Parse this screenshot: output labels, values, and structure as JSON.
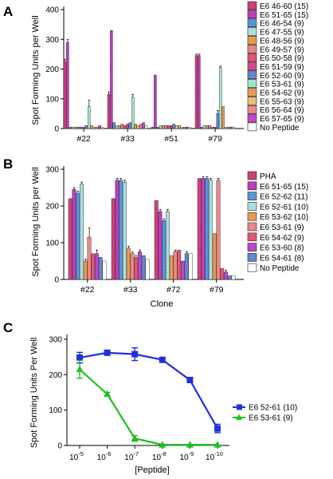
{
  "figure": {
    "panel_labels": [
      "A",
      "B",
      "C"
    ]
  },
  "chart_data": [
    {
      "panel": "A",
      "type": "bar",
      "ylabel": "Spot Forming Units per Well",
      "xlabel": "",
      "ylim": [
        0,
        400
      ],
      "yticks": [
        0,
        100,
        200,
        300,
        400
      ],
      "categories": [
        "#22",
        "#33",
        "#51",
        "#79"
      ],
      "series": [
        {
          "name": "E6 46-60 (15)",
          "color": "#d6457a",
          "values": [
            225,
            115,
            5,
            245
          ],
          "errors": [
            8,
            8,
            0,
            5
          ]
        },
        {
          "name": "E6 51-65 (15)",
          "color": "#c23fc2",
          "values": [
            290,
            330,
            180,
            245
          ],
          "errors": [
            10,
            0,
            0,
            5
          ]
        },
        {
          "name": "E6 46-54 (9)",
          "color": "#5a9ce0",
          "values": [
            5,
            20,
            5,
            5
          ],
          "errors": [
            0,
            0,
            0,
            0
          ]
        },
        {
          "name": "E6 47-55 (9)",
          "color": "#b4e6e6",
          "values": [
            5,
            10,
            10,
            10
          ],
          "errors": [
            0,
            0,
            0,
            0
          ]
        },
        {
          "name": "E6 48-56 (9)",
          "color": "#f0a050",
          "values": [
            5,
            10,
            10,
            10
          ],
          "errors": [
            0,
            0,
            0,
            0
          ]
        },
        {
          "name": "E6 49-57 (9)",
          "color": "#f08c8c",
          "values": [
            5,
            15,
            10,
            10
          ],
          "errors": [
            0,
            0,
            0,
            0
          ]
        },
        {
          "name": "E6 50-58 (9)",
          "color": "#e85a78",
          "values": [
            5,
            10,
            10,
            5
          ],
          "errors": [
            0,
            0,
            0,
            0
          ]
        },
        {
          "name": "E6 51-59 (9)",
          "color": "#e04a94",
          "values": [
            5,
            15,
            10,
            5
          ],
          "errors": [
            0,
            0,
            0,
            0
          ]
        },
        {
          "name": "E6 52-60 (9)",
          "color": "#6a8ad8",
          "values": [
            10,
            20,
            15,
            50
          ],
          "errors": [
            0,
            0,
            0,
            10
          ]
        },
        {
          "name": "E6 53-61 (9)",
          "color": "#a8ecd0",
          "values": [
            75,
            105,
            10,
            205
          ],
          "errors": [
            20,
            10,
            0,
            5
          ]
        },
        {
          "name": "E6 54-62 (9)",
          "color": "#f0a060",
          "values": [
            10,
            15,
            10,
            75
          ],
          "errors": [
            0,
            0,
            0,
            0
          ]
        },
        {
          "name": "E6 55-63 (9)",
          "color": "#f0c878",
          "values": [
            5,
            10,
            5,
            5
          ],
          "errors": [
            0,
            0,
            0,
            0
          ]
        },
        {
          "name": "E6 56-64 (9)",
          "color": "#f09090",
          "values": [
            5,
            15,
            5,
            5
          ],
          "errors": [
            0,
            0,
            0,
            0
          ]
        },
        {
          "name": "E6 57-65  (9)",
          "color": "#d04ad0",
          "values": [
            10,
            20,
            5,
            5
          ],
          "errors": [
            0,
            0,
            0,
            0
          ]
        },
        {
          "name": "No Peptide",
          "color": "#ffffff",
          "values": [
            5,
            10,
            5,
            5
          ],
          "errors": [
            0,
            0,
            0,
            0
          ]
        }
      ]
    },
    {
      "panel": "B",
      "type": "bar",
      "ylabel": "Spot Forming Units per Well",
      "xlabel": "Clone",
      "ylim": [
        0,
        300
      ],
      "yticks": [
        0,
        100,
        200,
        300
      ],
      "categories": [
        "#22",
        "#33",
        "#72",
        "#79"
      ],
      "series": [
        {
          "name": "PHA",
          "color": "#d6457a",
          "values": [
            220,
            220,
            215,
            275
          ],
          "errors": [
            0,
            0,
            0,
            0
          ]
        },
        {
          "name": "E6 51-65 (15)",
          "color": "#c23fc2",
          "values": [
            245,
            270,
            185,
            275
          ],
          "errors": [
            5,
            5,
            5,
            5
          ]
        },
        {
          "name": "E6 52-62 (11)",
          "color": "#5a9ce0",
          "values": [
            235,
            270,
            160,
            275
          ],
          "errors": [
            5,
            5,
            5,
            5
          ]
        },
        {
          "name": "E6 52-61 (10)",
          "color": "#b4e6e6",
          "values": [
            260,
            265,
            185,
            270
          ],
          "errors": [
            5,
            5,
            5,
            5
          ]
        },
        {
          "name": "E6 53-62 (10)",
          "color": "#f0a050",
          "values": [
            50,
            85,
            65,
            125
          ],
          "errors": [
            5,
            5,
            0,
            0
          ]
        },
        {
          "name": "E6 53-61 (9)",
          "color": "#f08c8c",
          "values": [
            115,
            70,
            75,
            270
          ],
          "errors": [
            25,
            5,
            5,
            5
          ]
        },
        {
          "name": "E6 54-62 (9)",
          "color": "#e85a78",
          "values": [
            70,
            60,
            80,
            30
          ],
          "errors": [
            0,
            5,
            0,
            0
          ]
        },
        {
          "name": "E6 53-60 (8)",
          "color": "#c04ad0",
          "values": [
            70,
            75,
            50,
            20
          ],
          "errors": [
            10,
            5,
            0,
            5
          ]
        },
        {
          "name": "E6 54-61 (8)",
          "color": "#6a8ad8",
          "values": [
            60,
            65,
            70,
            10
          ],
          "errors": [
            0,
            0,
            5,
            0
          ]
        },
        {
          "name": "No Peptide",
          "color": "#ffffff",
          "values": [
            50,
            55,
            70,
            10
          ],
          "errors": [
            0,
            0,
            0,
            0
          ]
        }
      ]
    },
    {
      "panel": "C",
      "type": "line",
      "ylabel": "Spot Forming Units Per Well",
      "xlabel": "[Peptide]",
      "ylim": [
        0,
        300
      ],
      "yticks": [
        0,
        100,
        200,
        300
      ],
      "x": [
        1e-05,
        1e-06,
        1e-07,
        1e-08,
        1e-09,
        1e-10
      ],
      "xticklabels": [
        "10",
        "10",
        "10",
        "10",
        "10",
        "10"
      ],
      "xtickexps": [
        "-5",
        "-6",
        "-7",
        "-8",
        "-9",
        "-10"
      ],
      "xscale": "log, decreasing",
      "legend_position": "right",
      "series": [
        {
          "name": "E6 52-61 (10)",
          "color": "#1f2fe0",
          "marker": "square",
          "values": [
            248,
            262,
            258,
            242,
            185,
            48
          ],
          "errors": [
            15,
            5,
            18,
            5,
            5,
            12
          ]
        },
        {
          "name": "E6 53-61 (9)",
          "color": "#22c022",
          "marker": "triangle",
          "values": [
            215,
            145,
            20,
            2,
            2,
            2
          ],
          "errors": [
            25,
            5,
            8,
            0,
            0,
            0
          ]
        }
      ]
    }
  ]
}
